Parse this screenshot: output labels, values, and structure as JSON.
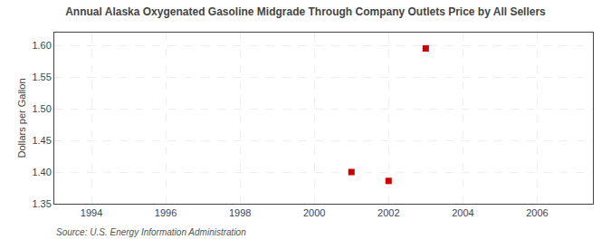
{
  "chart_data": {
    "type": "scatter",
    "title": "Annual Alaska Oxygenated Gasoline Midgrade Through Company Outlets Price by All Sellers",
    "y_label": "Dollars per Gallon",
    "annotations": [
      "Source: U.S. Energy Information Administration"
    ],
    "x": [
      2001,
      2002,
      2003
    ],
    "values": [
      1.4,
      1.386,
      1.595
    ],
    "color": "#cc0000",
    "marker": "square",
    "xlim": [
      1993.0,
      2007.5
    ],
    "xticks": [
      1994,
      1996,
      1998,
      2000,
      2002,
      2004,
      2006
    ],
    "ylim": [
      1.35,
      1.62
    ],
    "yticks": [
      1.35,
      {
        "value": 1.4,
        "label": "1.40"
      },
      1.45,
      {
        "value": 1.5,
        "label": "1.50"
      },
      1.55,
      {
        "value": 1.6,
        "label": "1.60"
      }
    ],
    "grid": true
  }
}
